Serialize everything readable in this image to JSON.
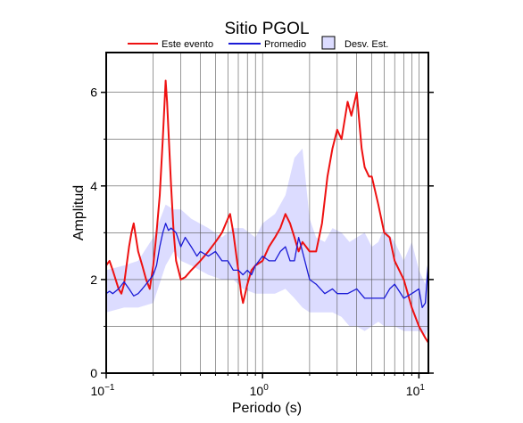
{
  "chart_data": {
    "type": "line",
    "title": "Sitio PGOL",
    "xlabel": "Periodo (s)",
    "ylabel": "Amplitud",
    "x_scale": "log",
    "xlim": [
      0.1,
      11.5
    ],
    "ylim": [
      0,
      6.85
    ],
    "x_ticks": [
      {
        "value": 0.1,
        "base": "10",
        "exp": "−1"
      },
      {
        "value": 1,
        "base": "10",
        "exp": "0"
      },
      {
        "value": 10,
        "base": "10",
        "exp": "1"
      }
    ],
    "y_ticks": [
      0,
      2,
      4,
      6
    ],
    "y_minor_ticks": [
      1,
      3,
      5
    ],
    "grid": true,
    "legend": {
      "position": "top",
      "entries": [
        {
          "label": "Este evento",
          "kind": "line",
          "color": "#ee1111"
        },
        {
          "label": "Promedio",
          "kind": "line",
          "color": "#1a1ad6"
        },
        {
          "label": "Desv. Est.",
          "kind": "box",
          "color": "#dcdcff"
        }
      ]
    },
    "band": {
      "name": "Desv. Est.",
      "color": "#dcdcff",
      "x": [
        0.1,
        0.13,
        0.16,
        0.2,
        0.24,
        0.27,
        0.3,
        0.35,
        0.45,
        0.55,
        0.65,
        0.75,
        0.9,
        1.0,
        1.2,
        1.4,
        1.6,
        1.8,
        2.0,
        2.2,
        2.5,
        2.8,
        3.2,
        3.6,
        4.0,
        4.5,
        5.0,
        5.5,
        6.0,
        7.0,
        8.0,
        9.0,
        10.0,
        11.0,
        11.5
      ],
      "upper": [
        2.2,
        2.3,
        2.4,
        2.9,
        3.6,
        3.5,
        3.5,
        3.3,
        3.1,
        2.9,
        3.1,
        3.1,
        2.9,
        3.2,
        3.4,
        3.8,
        4.6,
        4.8,
        3.3,
        2.9,
        2.8,
        3.1,
        3.0,
        2.8,
        2.9,
        3.0,
        2.7,
        2.8,
        3.1,
        2.8,
        2.4,
        2.8,
        2.2,
        1.9,
        2.4
      ],
      "lower": [
        1.3,
        1.4,
        1.4,
        1.5,
        2.3,
        2.6,
        2.4,
        2.3,
        2.1,
        2.0,
        2.0,
        1.8,
        1.7,
        1.7,
        1.7,
        1.8,
        1.6,
        1.4,
        1.3,
        1.3,
        1.3,
        1.3,
        1.2,
        1.0,
        1.0,
        0.9,
        1.0,
        1.1,
        1.0,
        1.0,
        0.9,
        0.9,
        0.9,
        0.8,
        1.0
      ]
    },
    "series": [
      {
        "name": "Este evento",
        "color": "#ee1111",
        "x": [
          0.1,
          0.105,
          0.11,
          0.115,
          0.12,
          0.125,
          0.13,
          0.135,
          0.14,
          0.145,
          0.15,
          0.155,
          0.16,
          0.17,
          0.18,
          0.19,
          0.2,
          0.21,
          0.22,
          0.23,
          0.24,
          0.245,
          0.25,
          0.26,
          0.27,
          0.28,
          0.3,
          0.32,
          0.35,
          0.4,
          0.45,
          0.5,
          0.55,
          0.6,
          0.62,
          0.65,
          0.7,
          0.73,
          0.75,
          0.8,
          0.85,
          0.9,
          1.0,
          1.1,
          1.2,
          1.3,
          1.4,
          1.5,
          1.6,
          1.7,
          1.8,
          1.9,
          2.0,
          2.2,
          2.4,
          2.6,
          2.8,
          3.0,
          3.2,
          3.5,
          3.7,
          4.0,
          4.3,
          4.5,
          4.8,
          5.0,
          5.5,
          6.0,
          6.5,
          7.0,
          8.0,
          9.0,
          10.0,
          11.0,
          11.5
        ],
        "y": [
          2.3,
          2.4,
          2.2,
          2.0,
          1.8,
          1.7,
          1.9,
          2.3,
          2.7,
          3.0,
          3.2,
          2.9,
          2.6,
          2.3,
          2.0,
          1.8,
          2.3,
          3.0,
          3.8,
          5.0,
          6.25,
          5.8,
          5.2,
          4.0,
          3.0,
          2.4,
          2.0,
          2.05,
          2.2,
          2.4,
          2.6,
          2.8,
          3.0,
          3.3,
          3.4,
          3.0,
          2.2,
          1.7,
          1.5,
          1.9,
          2.2,
          2.3,
          2.4,
          2.7,
          2.9,
          3.1,
          3.4,
          3.2,
          2.9,
          2.6,
          2.8,
          2.7,
          2.6,
          2.6,
          3.2,
          4.2,
          4.8,
          5.2,
          5.0,
          5.8,
          5.5,
          6.0,
          4.8,
          4.4,
          4.2,
          4.2,
          3.6,
          3.0,
          2.9,
          2.4,
          2.0,
          1.4,
          1.0,
          0.75,
          0.65
        ]
      },
      {
        "name": "Promedio",
        "color": "#1a1ad6",
        "x": [
          0.1,
          0.105,
          0.11,
          0.12,
          0.13,
          0.14,
          0.15,
          0.16,
          0.17,
          0.18,
          0.19,
          0.2,
          0.21,
          0.22,
          0.23,
          0.24,
          0.25,
          0.26,
          0.28,
          0.3,
          0.32,
          0.35,
          0.38,
          0.4,
          0.45,
          0.5,
          0.55,
          0.6,
          0.65,
          0.7,
          0.75,
          0.8,
          0.85,
          0.9,
          1.0,
          1.1,
          1.2,
          1.3,
          1.4,
          1.5,
          1.6,
          1.7,
          1.8,
          2.0,
          2.2,
          2.5,
          2.8,
          3.0,
          3.5,
          4.0,
          4.5,
          5.0,
          5.5,
          6.0,
          6.5,
          7.0,
          8.0,
          9.0,
          10.0,
          10.5,
          11.0,
          11.5
        ],
        "y": [
          1.7,
          1.75,
          1.7,
          1.8,
          1.95,
          1.8,
          1.65,
          1.7,
          1.8,
          1.9,
          2.0,
          2.1,
          2.3,
          2.7,
          3.0,
          3.2,
          3.05,
          3.1,
          3.0,
          2.7,
          2.9,
          2.7,
          2.5,
          2.6,
          2.5,
          2.6,
          2.4,
          2.4,
          2.2,
          2.2,
          2.1,
          2.2,
          2.1,
          2.3,
          2.5,
          2.4,
          2.4,
          2.6,
          2.7,
          2.4,
          2.4,
          2.9,
          2.6,
          2.0,
          1.9,
          1.7,
          1.8,
          1.7,
          1.7,
          1.8,
          1.6,
          1.6,
          1.6,
          1.6,
          1.8,
          1.9,
          1.6,
          1.7,
          1.8,
          1.4,
          1.5,
          2.4
        ]
      }
    ]
  }
}
